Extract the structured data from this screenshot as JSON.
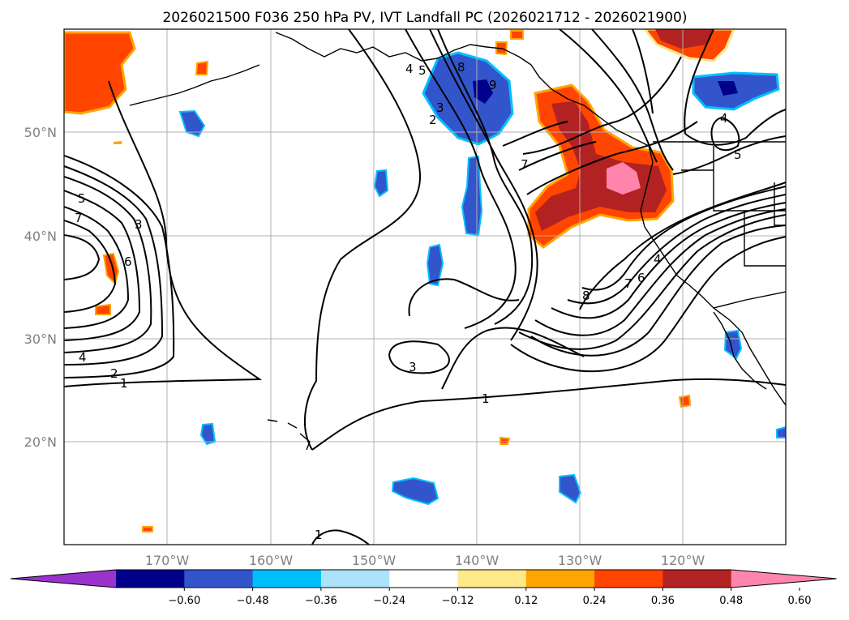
{
  "title": "2026021500 F036 250 hPa PV, IVT Landfall PC (2026021712 - 2026021900)",
  "map": {
    "lon_ticks": [
      "170°W",
      "160°W",
      "150°W",
      "140°W",
      "130°W",
      "120°W"
    ],
    "lat_ticks": [
      "50°N",
      "40°N",
      "30°N",
      "20°N"
    ],
    "gridlines": true,
    "contour_labels": [
      {
        "text": "5",
        "name": "contour-label-5-west"
      },
      {
        "text": "7",
        "name": "contour-label-7-west"
      },
      {
        "text": "3",
        "name": "contour-label-3-west"
      },
      {
        "text": "6",
        "name": "contour-label-6-west"
      },
      {
        "text": "4",
        "name": "contour-label-4-west"
      },
      {
        "text": "2",
        "name": "contour-label-2-west"
      },
      {
        "text": "1",
        "name": "contour-label-1-west"
      },
      {
        "text": "4",
        "name": "contour-label-4-north"
      },
      {
        "text": "5",
        "name": "contour-label-5-north"
      },
      {
        "text": "3",
        "name": "contour-label-3-north"
      },
      {
        "text": "8",
        "name": "contour-label-8-north"
      },
      {
        "text": "9",
        "name": "contour-label-9-north"
      },
      {
        "text": "2",
        "name": "contour-label-2-north"
      },
      {
        "text": "7",
        "name": "contour-label-7-north"
      },
      {
        "text": "8",
        "name": "contour-label-8-south"
      },
      {
        "text": "7",
        "name": "contour-label-7-south"
      },
      {
        "text": "6",
        "name": "contour-label-6-south"
      },
      {
        "text": "4",
        "name": "contour-label-4-south"
      },
      {
        "text": "3",
        "name": "contour-label-3-central"
      },
      {
        "text": "1",
        "name": "contour-label-1-central"
      },
      {
        "text": "1",
        "name": "contour-label-1-bottom"
      },
      {
        "text": "4",
        "name": "contour-label-4-inland"
      },
      {
        "text": "5",
        "name": "contour-label-5-inland"
      }
    ]
  },
  "colorbar": {
    "extend": "both",
    "ticks": [
      "−0.60",
      "−0.48",
      "−0.36",
      "−0.24",
      "−0.12",
      "0.12",
      "0.24",
      "0.36",
      "0.48",
      "0.60"
    ],
    "colors": [
      "#9933cc",
      "#00008b",
      "#3355cc",
      "#00bfff",
      "#aee2fa",
      "#ffffff",
      "#ffe98a",
      "#ffa500",
      "#ff4500",
      "#b22222",
      "#ff85ad"
    ]
  }
}
